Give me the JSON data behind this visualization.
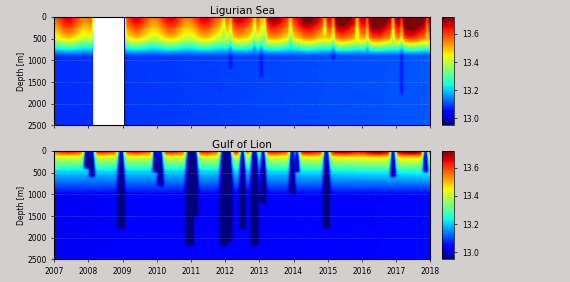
{
  "title1": "Ligurian Sea",
  "title2": "Gulf of Lion",
  "ylabel": "Depth [m]",
  "xmin": 2007.0,
  "xmax": 2018.0,
  "ymin": 0,
  "ymax": 2500,
  "yticks": [
    0,
    500,
    1000,
    1500,
    2000,
    2500
  ],
  "xticks": [
    2007,
    2008,
    2009,
    2010,
    2011,
    2012,
    2013,
    2014,
    2015,
    2016,
    2017,
    2018
  ],
  "clim_min": 12.95,
  "clim_max": 13.72,
  "cbar_ticks": [
    13.0,
    13.2,
    13.4,
    13.6
  ],
  "bg_color": "#d3cfcf",
  "colormap": "jet",
  "fig_width": 5.7,
  "fig_height": 2.82
}
